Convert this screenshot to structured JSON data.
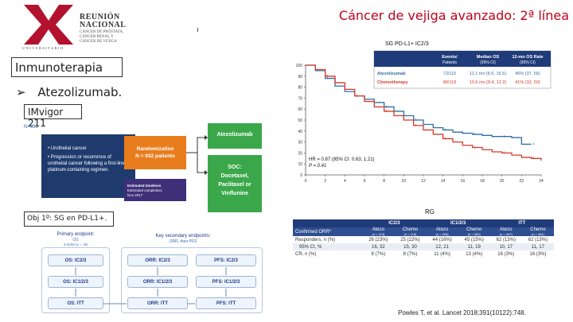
{
  "logo": {
    "letter": "X",
    "caption": "UNIVERSITARIO",
    "title_lines": [
      "REUNIÓN",
      "NACIONAL"
    ],
    "sub_lines": [
      "CÁNCER DE PRÓSTATA,",
      "CÁNCER RENAL Y",
      "CÁNCER DE VEJIGA"
    ]
  },
  "slide_title": "Cáncer de vejiga avanzado: 2ª línea",
  "left": {
    "section": "Inmunoterapia",
    "bullet_symbol": "➢",
    "bullet_text": "Atezolizumab.",
    "trial": "IMvigor 211",
    "n_label": "N=931",
    "objective": "Obj 1º: SG en PD-L1+."
  },
  "design": {
    "criteria": [
      "Urothelial cancer",
      "Progression or recurrence of urothelial cancer following a first-line platinum-containing regimen."
    ],
    "randomization": [
      "Randomization",
      "N = 932 patients"
    ],
    "timelines": [
      "Estimated timelines",
      "Estimated completion:",
      "Nov 2017"
    ],
    "arm_a": "Atezolizumab",
    "arm_b": [
      "SOC:",
      "Docetaxel,",
      "Paclitaxel or",
      "Vinflunine"
    ]
  },
  "endpoints": {
    "primary_head": "Primary endpoint:",
    "primary_sub": "OS",
    "primary_alpha": "2-sided α = .05",
    "secondary_head": "Key secondary endpoints:",
    "secondary_sub": "ORR, then PFS",
    "col1": [
      "OS: IC2/3",
      "OS: IC1/2/3",
      "OS: ITT"
    ],
    "col2": [
      "ORR: IC2/3",
      "ORR: IC1/2/3",
      "ORR: ITT"
    ],
    "col3": [
      "PFS: IC2/3",
      "PFS: IC1/2/3",
      "PFS: ITT"
    ]
  },
  "km": {
    "label": "SG PD-L1+ IC2/3",
    "legend_headers": [
      "Events/ Patients",
      "Median OS (95% CI)",
      "12-mo OS Rate (95% CI)"
    ],
    "legend_rows": [
      {
        "arm": "Atezolizumab",
        "events": "72/116",
        "median": "11.1 mo (8.6, 15.5)",
        "rate": "46% (37, 56)",
        "color": "#2f6ea5"
      },
      {
        "arm": "Chemotherapy",
        "events": "88/118",
        "median": "10.6 mo (8.4, 12.2)",
        "rate": "41% (32, 50)",
        "color": "#d63b2b"
      }
    ],
    "hr_text": "HR = 0.87 (95% CI: 0.63, 1.21)",
    "p_text": "P = 0.41",
    "y_ticks": [
      "100",
      "90",
      "80",
      "70",
      "60",
      "50",
      "40",
      "30",
      "20",
      "10",
      "0"
    ],
    "x_ticks": [
      "0",
      "2",
      "4",
      "6",
      "8",
      "10",
      "12",
      "14",
      "16",
      "18",
      "20",
      "22",
      "24"
    ]
  },
  "chart_data": {
    "type": "line",
    "title": "SG PD-L1+ IC2/3",
    "xlabel": "",
    "ylabel": "",
    "xlim": [
      0,
      24
    ],
    "ylim": [
      0,
      100
    ],
    "series": [
      {
        "name": "Atezolizumab",
        "color": "#2f6ea5",
        "x": [
          0,
          1,
          2,
          3,
          4,
          5,
          6,
          7,
          8,
          9,
          10,
          11,
          12,
          13,
          14,
          15,
          16,
          17,
          18,
          19,
          20,
          21,
          22,
          23
        ],
        "y": [
          100,
          95,
          88,
          81,
          76,
          72,
          69,
          66,
          62,
          58,
          54,
          50,
          46,
          43,
          41,
          39,
          38,
          37,
          36,
          35,
          35,
          34,
          28,
          28
        ]
      },
      {
        "name": "Chemotherapy",
        "color": "#d63b2b",
        "x": [
          0,
          1,
          2,
          3,
          4,
          5,
          6,
          7,
          8,
          9,
          10,
          11,
          12,
          13,
          14,
          15,
          16,
          17,
          18,
          19,
          20,
          21,
          22,
          23,
          24
        ],
        "y": [
          100,
          96,
          90,
          84,
          78,
          72,
          67,
          62,
          58,
          54,
          50,
          45,
          41,
          37,
          33,
          30,
          27,
          25,
          23,
          21,
          20,
          18,
          16,
          15,
          13
        ]
      }
    ]
  },
  "rg": {
    "label": "RG",
    "groups": [
      "IC2/3",
      "IC1/2/3",
      "ITT"
    ],
    "header_first": "Confirmed ORR*",
    "columns": [
      {
        "arm": "Atezo",
        "n": "(n = 113)"
      },
      {
        "arm": "Chemo",
        "n": "(n = 116)"
      },
      {
        "arm": "Atezo",
        "n": "(n = 283)"
      },
      {
        "arm": "Chemo",
        "n": "(n = 300)"
      },
      {
        "arm": "Atezo",
        "n": "(n = 467)"
      },
      {
        "arm": "Chemo",
        "n": "(n = 461)"
      }
    ],
    "rows": [
      {
        "label": "Responders, n (%)",
        "values": [
          "26 (23%)",
          "25 (22%)",
          "44 (16%)",
          "45 (15%)",
          "62 (13%)",
          "62 (13%)"
        ]
      },
      {
        "label": "95% CI, %",
        "values": [
          "16, 32",
          "15, 30",
          "12, 21",
          "11, 19",
          "10, 17",
          "11, 17"
        ]
      },
      {
        "label": "CR, n (%)",
        "values": [
          "8 (7%)",
          "8 (7%)",
          "11 (4%)",
          "13 (4%)",
          "16 (3%)",
          "16 (3%)"
        ]
      }
    ]
  },
  "reference": "Powles T, et al. Lancet 2018;391(10122):748."
}
